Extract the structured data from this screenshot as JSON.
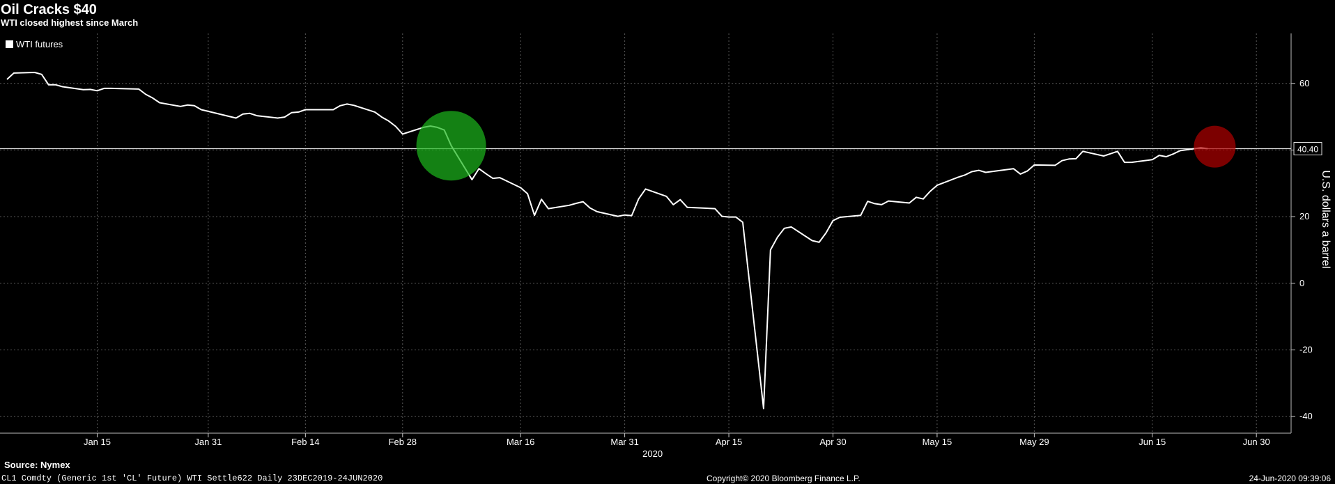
{
  "header": {
    "title": "Oil Cracks $40",
    "subtitle": "WTI closed highest since March"
  },
  "footer": {
    "source": "Source: Nymex",
    "security": "CL1 Comdty (Generic 1st 'CL' Future) WTI Settle622  Daily 23DEC2019-24JUN2020",
    "copyright": "Copyright© 2020 Bloomberg Finance L.P.",
    "timestamp": "24-Jun-2020 09:39:06"
  },
  "colors": {
    "background": "#000000",
    "line": "#ffffff",
    "grid": "#5a5a5a",
    "green_marker": "#1db81d",
    "red_marker": "#b00000"
  },
  "chart_data": {
    "type": "line",
    "title": "Oil Cracks $40",
    "subtitle": "WTI closed highest since March",
    "xlabel": "2020",
    "ylabel": "U.S. dollars a barrel",
    "ylim": [
      -45,
      75
    ],
    "yticks": [
      60,
      40,
      20,
      0,
      -20,
      -40
    ],
    "xticks": [
      {
        "date": "2020-01-15",
        "label": "Jan 15"
      },
      {
        "date": "2020-01-31",
        "label": "Jan 31"
      },
      {
        "date": "2020-02-14",
        "label": "Feb 14"
      },
      {
        "date": "2020-02-28",
        "label": "Feb 28"
      },
      {
        "date": "2020-03-16",
        "label": "Mar 16"
      },
      {
        "date": "2020-03-31",
        "label": "Mar 31"
      },
      {
        "date": "2020-04-15",
        "label": "Apr 15"
      },
      {
        "date": "2020-04-30",
        "label": "Apr 30"
      },
      {
        "date": "2020-05-15",
        "label": "May 15"
      },
      {
        "date": "2020-05-29",
        "label": "May 29"
      },
      {
        "date": "2020-06-15",
        "label": "Jun 15"
      },
      {
        "date": "2020-06-30",
        "label": "Jun 30"
      }
    ],
    "xlim": [
      "2020-01-01",
      "2020-07-05"
    ],
    "grid": true,
    "legend": {
      "position": "top-left",
      "entries": [
        "WTI futures"
      ]
    },
    "last_value_label": "40.40",
    "reference_line": 40.4,
    "markers": [
      {
        "date": "2020-03-06",
        "value": 41.3,
        "color": "green"
      },
      {
        "date": "2020-06-24",
        "value": 41,
        "color": "red"
      }
    ],
    "series": [
      {
        "name": "WTI futures",
        "points": [
          [
            "2020-01-02",
            61.2
          ],
          [
            "2020-01-03",
            63.1
          ],
          [
            "2020-01-06",
            63.3
          ],
          [
            "2020-01-07",
            62.7
          ],
          [
            "2020-01-08",
            59.6
          ],
          [
            "2020-01-09",
            59.6
          ],
          [
            "2020-01-10",
            59.0
          ],
          [
            "2020-01-13",
            58.1
          ],
          [
            "2020-01-14",
            58.2
          ],
          [
            "2020-01-15",
            57.8
          ],
          [
            "2020-01-16",
            58.5
          ],
          [
            "2020-01-17",
            58.5
          ],
          [
            "2020-01-21",
            58.3
          ],
          [
            "2020-01-22",
            56.7
          ],
          [
            "2020-01-23",
            55.6
          ],
          [
            "2020-01-24",
            54.2
          ],
          [
            "2020-01-27",
            53.1
          ],
          [
            "2020-01-28",
            53.5
          ],
          [
            "2020-01-29",
            53.3
          ],
          [
            "2020-01-30",
            52.1
          ],
          [
            "2020-01-31",
            51.6
          ],
          [
            "2020-02-03",
            50.1
          ],
          [
            "2020-02-04",
            49.6
          ],
          [
            "2020-02-05",
            50.8
          ],
          [
            "2020-02-06",
            51.0
          ],
          [
            "2020-02-07",
            50.3
          ],
          [
            "2020-02-10",
            49.6
          ],
          [
            "2020-02-11",
            49.9
          ],
          [
            "2020-02-12",
            51.2
          ],
          [
            "2020-02-13",
            51.4
          ],
          [
            "2020-02-14",
            52.1
          ],
          [
            "2020-02-18",
            52.1
          ],
          [
            "2020-02-19",
            53.3
          ],
          [
            "2020-02-20",
            53.8
          ],
          [
            "2020-02-21",
            53.4
          ],
          [
            "2020-02-24",
            51.4
          ],
          [
            "2020-02-25",
            49.9
          ],
          [
            "2020-02-26",
            48.7
          ],
          [
            "2020-02-27",
            47.1
          ],
          [
            "2020-02-28",
            44.8
          ],
          [
            "2020-03-02",
            46.8
          ],
          [
            "2020-03-03",
            47.2
          ],
          [
            "2020-03-04",
            46.8
          ],
          [
            "2020-03-05",
            46.0
          ],
          [
            "2020-03-06",
            41.3
          ],
          [
            "2020-03-09",
            31.1
          ],
          [
            "2020-03-10",
            34.4
          ],
          [
            "2020-03-11",
            32.9
          ],
          [
            "2020-03-12",
            31.5
          ],
          [
            "2020-03-13",
            31.7
          ],
          [
            "2020-03-16",
            28.7
          ],
          [
            "2020-03-17",
            26.9
          ],
          [
            "2020-03-18",
            20.4
          ],
          [
            "2020-03-19",
            25.2
          ],
          [
            "2020-03-20",
            22.4
          ],
          [
            "2020-03-23",
            23.4
          ],
          [
            "2020-03-24",
            24.0
          ],
          [
            "2020-03-25",
            24.5
          ],
          [
            "2020-03-26",
            22.6
          ],
          [
            "2020-03-27",
            21.5
          ],
          [
            "2020-03-30",
            20.1
          ],
          [
            "2020-03-31",
            20.5
          ],
          [
            "2020-04-01",
            20.3
          ],
          [
            "2020-04-02",
            25.3
          ],
          [
            "2020-04-03",
            28.3
          ],
          [
            "2020-04-06",
            26.1
          ],
          [
            "2020-04-07",
            23.6
          ],
          [
            "2020-04-08",
            25.1
          ],
          [
            "2020-04-09",
            22.8
          ],
          [
            "2020-04-13",
            22.4
          ],
          [
            "2020-04-14",
            20.1
          ],
          [
            "2020-04-15",
            19.9
          ],
          [
            "2020-04-16",
            19.9
          ],
          [
            "2020-04-17",
            18.3
          ],
          [
            "2020-04-20",
            -37.6
          ],
          [
            "2020-04-21",
            10.0
          ],
          [
            "2020-04-22",
            13.8
          ],
          [
            "2020-04-23",
            16.5
          ],
          [
            "2020-04-24",
            16.9
          ],
          [
            "2020-04-27",
            12.8
          ],
          [
            "2020-04-28",
            12.3
          ],
          [
            "2020-04-29",
            15.1
          ],
          [
            "2020-04-30",
            18.8
          ],
          [
            "2020-05-01",
            19.8
          ],
          [
            "2020-05-04",
            20.4
          ],
          [
            "2020-05-05",
            24.6
          ],
          [
            "2020-05-06",
            23.9
          ],
          [
            "2020-05-07",
            23.6
          ],
          [
            "2020-05-08",
            24.7
          ],
          [
            "2020-05-11",
            24.1
          ],
          [
            "2020-05-12",
            25.8
          ],
          [
            "2020-05-13",
            25.3
          ],
          [
            "2020-05-14",
            27.6
          ],
          [
            "2020-05-15",
            29.4
          ],
          [
            "2020-05-18",
            31.8
          ],
          [
            "2020-05-19",
            32.5
          ],
          [
            "2020-05-20",
            33.5
          ],
          [
            "2020-05-21",
            33.9
          ],
          [
            "2020-05-22",
            33.3
          ],
          [
            "2020-05-26",
            34.4
          ],
          [
            "2020-05-27",
            32.8
          ],
          [
            "2020-05-28",
            33.7
          ],
          [
            "2020-05-29",
            35.5
          ],
          [
            "2020-06-01",
            35.4
          ],
          [
            "2020-06-02",
            36.8
          ],
          [
            "2020-06-03",
            37.3
          ],
          [
            "2020-06-04",
            37.4
          ],
          [
            "2020-06-05",
            39.6
          ],
          [
            "2020-06-08",
            38.2
          ],
          [
            "2020-06-09",
            38.9
          ],
          [
            "2020-06-10",
            39.6
          ],
          [
            "2020-06-11",
            36.3
          ],
          [
            "2020-06-12",
            36.3
          ],
          [
            "2020-06-15",
            37.1
          ],
          [
            "2020-06-16",
            38.4
          ],
          [
            "2020-06-17",
            38.0
          ],
          [
            "2020-06-18",
            38.8
          ],
          [
            "2020-06-19",
            39.8
          ],
          [
            "2020-06-22",
            40.7
          ],
          [
            "2020-06-23",
            40.4
          ]
        ]
      }
    ]
  }
}
